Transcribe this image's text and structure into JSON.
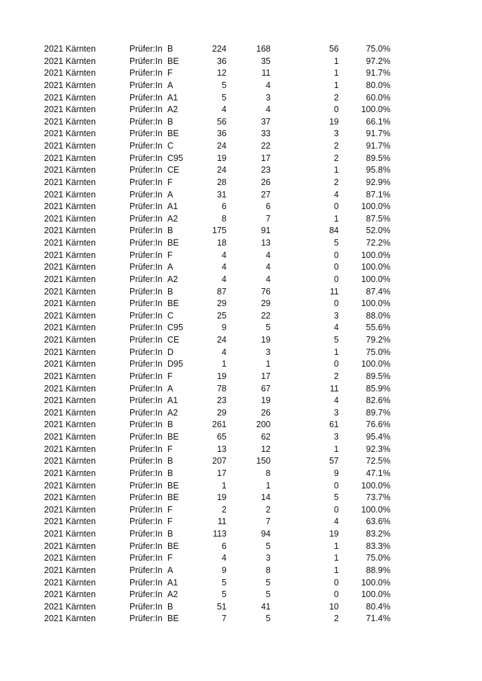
{
  "table": {
    "rows": [
      [
        "2021 Kärnten",
        "Prüfer:In",
        "B",
        "224",
        "168",
        "56",
        "75.0%"
      ],
      [
        "2021 Kärnten",
        "Prüfer:In",
        "BE",
        "36",
        "35",
        "1",
        "97.2%"
      ],
      [
        "2021 Kärnten",
        "Prüfer:In",
        "F",
        "12",
        "11",
        "1",
        "91.7%"
      ],
      [
        "2021 Kärnten",
        "Prüfer:In",
        "A",
        "5",
        "4",
        "1",
        "80.0%"
      ],
      [
        "2021 Kärnten",
        "Prüfer:In",
        "A1",
        "5",
        "3",
        "2",
        "60.0%"
      ],
      [
        "2021 Kärnten",
        "Prüfer:In",
        "A2",
        "4",
        "4",
        "0",
        "100.0%"
      ],
      [
        "2021 Kärnten",
        "Prüfer:In",
        "B",
        "56",
        "37",
        "19",
        "66.1%"
      ],
      [
        "2021 Kärnten",
        "Prüfer:In",
        "BE",
        "36",
        "33",
        "3",
        "91.7%"
      ],
      [
        "2021 Kärnten",
        "Prüfer:In",
        "C",
        "24",
        "22",
        "2",
        "91.7%"
      ],
      [
        "2021 Kärnten",
        "Prüfer:In",
        "C95",
        "19",
        "17",
        "2",
        "89.5%"
      ],
      [
        "2021 Kärnten",
        "Prüfer:In",
        "CE",
        "24",
        "23",
        "1",
        "95.8%"
      ],
      [
        "2021 Kärnten",
        "Prüfer:In",
        "F",
        "28",
        "26",
        "2",
        "92.9%"
      ],
      [
        "2021 Kärnten",
        "Prüfer:In",
        "A",
        "31",
        "27",
        "4",
        "87.1%"
      ],
      [
        "2021 Kärnten",
        "Prüfer:In",
        "A1",
        "6",
        "6",
        "0",
        "100.0%"
      ],
      [
        "2021 Kärnten",
        "Prüfer:In",
        "A2",
        "8",
        "7",
        "1",
        "87.5%"
      ],
      [
        "2021 Kärnten",
        "Prüfer:In",
        "B",
        "175",
        "91",
        "84",
        "52.0%"
      ],
      [
        "2021 Kärnten",
        "Prüfer:In",
        "BE",
        "18",
        "13",
        "5",
        "72.2%"
      ],
      [
        "2021 Kärnten",
        "Prüfer:In",
        "F",
        "4",
        "4",
        "0",
        "100.0%"
      ],
      [
        "2021 Kärnten",
        "Prüfer:In",
        "A",
        "4",
        "4",
        "0",
        "100.0%"
      ],
      [
        "2021 Kärnten",
        "Prüfer:In",
        "A2",
        "4",
        "4",
        "0",
        "100.0%"
      ],
      [
        "2021 Kärnten",
        "Prüfer:In",
        "B",
        "87",
        "76",
        "11",
        "87.4%"
      ],
      [
        "2021 Kärnten",
        "Prüfer:In",
        "BE",
        "29",
        "29",
        "0",
        "100.0%"
      ],
      [
        "2021 Kärnten",
        "Prüfer:In",
        "C",
        "25",
        "22",
        "3",
        "88.0%"
      ],
      [
        "2021 Kärnten",
        "Prüfer:In",
        "C95",
        "9",
        "5",
        "4",
        "55.6%"
      ],
      [
        "2021 Kärnten",
        "Prüfer:In",
        "CE",
        "24",
        "19",
        "5",
        "79.2%"
      ],
      [
        "2021 Kärnten",
        "Prüfer:In",
        "D",
        "4",
        "3",
        "1",
        "75.0%"
      ],
      [
        "2021 Kärnten",
        "Prüfer:In",
        "D95",
        "1",
        "1",
        "0",
        "100.0%"
      ],
      [
        "2021 Kärnten",
        "Prüfer:In",
        "F",
        "19",
        "17",
        "2",
        "89.5%"
      ],
      [
        "2021 Kärnten",
        "Prüfer:In",
        "A",
        "78",
        "67",
        "11",
        "85.9%"
      ],
      [
        "2021 Kärnten",
        "Prüfer:In",
        "A1",
        "23",
        "19",
        "4",
        "82.6%"
      ],
      [
        "2021 Kärnten",
        "Prüfer:In",
        "A2",
        "29",
        "26",
        "3",
        "89.7%"
      ],
      [
        "2021 Kärnten",
        "Prüfer:In",
        "B",
        "261",
        "200",
        "61",
        "76.6%"
      ],
      [
        "2021 Kärnten",
        "Prüfer:In",
        "BE",
        "65",
        "62",
        "3",
        "95.4%"
      ],
      [
        "2021 Kärnten",
        "Prüfer:In",
        "F",
        "13",
        "12",
        "1",
        "92.3%"
      ],
      [
        "2021 Kärnten",
        "Prüfer:In",
        "B",
        "207",
        "150",
        "57",
        "72.5%"
      ],
      [
        "2021 Kärnten",
        "Prüfer:In",
        "B",
        "17",
        "8",
        "9",
        "47.1%"
      ],
      [
        "2021 Kärnten",
        "Prüfer:In",
        "BE",
        "1",
        "1",
        "0",
        "100.0%"
      ],
      [
        "2021 Kärnten",
        "Prüfer:In",
        "BE",
        "19",
        "14",
        "5",
        "73.7%"
      ],
      [
        "2021 Kärnten",
        "Prüfer:In",
        "F",
        "2",
        "2",
        "0",
        "100.0%"
      ],
      [
        "2021 Kärnten",
        "Prüfer:In",
        "F",
        "11",
        "7",
        "4",
        "63.6%"
      ],
      [
        "2021 Kärnten",
        "Prüfer:In",
        "B",
        "113",
        "94",
        "19",
        "83.2%"
      ],
      [
        "2021 Kärnten",
        "Prüfer:In",
        "BE",
        "6",
        "5",
        "1",
        "83.3%"
      ],
      [
        "2021 Kärnten",
        "Prüfer:In",
        "F",
        "4",
        "3",
        "1",
        "75.0%"
      ],
      [
        "2021 Kärnten",
        "Prüfer:In",
        "A",
        "9",
        "8",
        "1",
        "88.9%"
      ],
      [
        "2021 Kärnten",
        "Prüfer:In",
        "A1",
        "5",
        "5",
        "0",
        "100.0%"
      ],
      [
        "2021 Kärnten",
        "Prüfer:In",
        "A2",
        "5",
        "5",
        "0",
        "100.0%"
      ],
      [
        "2021 Kärnten",
        "Prüfer:In",
        "B",
        "51",
        "41",
        "10",
        "80.4%"
      ],
      [
        "2021 Kärnten",
        "Prüfer:In",
        "BE",
        "7",
        "5",
        "2",
        "71.4%"
      ]
    ]
  }
}
